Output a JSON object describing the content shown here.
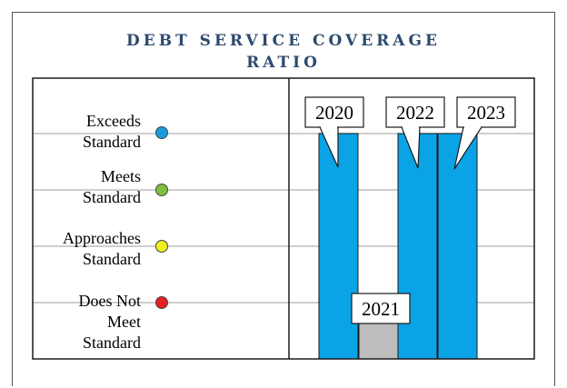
{
  "chart_data": {
    "type": "bar",
    "title_line1": "DEBT SERVICE COVERAGE",
    "title_line2": "RATIO",
    "categories": [
      "2020",
      "2021",
      "2022",
      "2023"
    ],
    "values": [
      4,
      1,
      4,
      4
    ],
    "ylim": [
      0,
      4
    ],
    "bar_colors": [
      "#0aa3e6",
      "#bdbdbd",
      "#0aa3e6",
      "#0aa3e6"
    ],
    "levels": [
      {
        "line1": "Exceeds",
        "line2": "Standard",
        "line3": "",
        "color": "#1a9be0"
      },
      {
        "line1": "Meets",
        "line2": "Standard",
        "line3": "",
        "color": "#7fbf3f"
      },
      {
        "line1": "Approaches",
        "line2": "Standard",
        "line3": "",
        "color": "#f2ef1a"
      },
      {
        "line1": "Does Not",
        "line2": "Meet",
        "line3": "Standard",
        "color": "#e62020"
      }
    ],
    "grid": true,
    "legend": "left"
  }
}
